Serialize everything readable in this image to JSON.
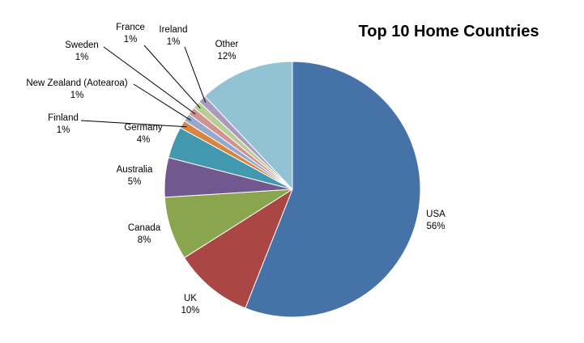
{
  "chart_data": {
    "type": "pie",
    "title": "Top 10 Home Countries",
    "start_angle_deg": 0,
    "direction": "clockwise",
    "slices": [
      {
        "label": "USA",
        "value": 56,
        "percent_label": "56%",
        "color": "#4572A7"
      },
      {
        "label": "UK",
        "value": 10,
        "percent_label": "10%",
        "color": "#AA4643"
      },
      {
        "label": "Canada",
        "value": 8,
        "percent_label": "8%",
        "color": "#89A54E"
      },
      {
        "label": "Australia",
        "value": 5,
        "percent_label": "5%",
        "color": "#71588F"
      },
      {
        "label": "Germany",
        "value": 4,
        "percent_label": "4%",
        "color": "#4198AF"
      },
      {
        "label": "Finland",
        "value": 1,
        "percent_label": "1%",
        "color": "#DB843D"
      },
      {
        "label": "New Zealand (Aotearoa)",
        "value": 1,
        "percent_label": "1%",
        "color": "#93A9CF"
      },
      {
        "label": "Sweden",
        "value": 1,
        "percent_label": "1%",
        "color": "#D19392"
      },
      {
        "label": "France",
        "value": 1,
        "percent_label": "1%",
        "color": "#B9CD96"
      },
      {
        "label": "Ireland",
        "value": 1,
        "percent_label": "1%",
        "color": "#A99BBD"
      },
      {
        "label": "Other",
        "value": 12,
        "percent_label": "12%",
        "color": "#92C3D4"
      }
    ]
  }
}
